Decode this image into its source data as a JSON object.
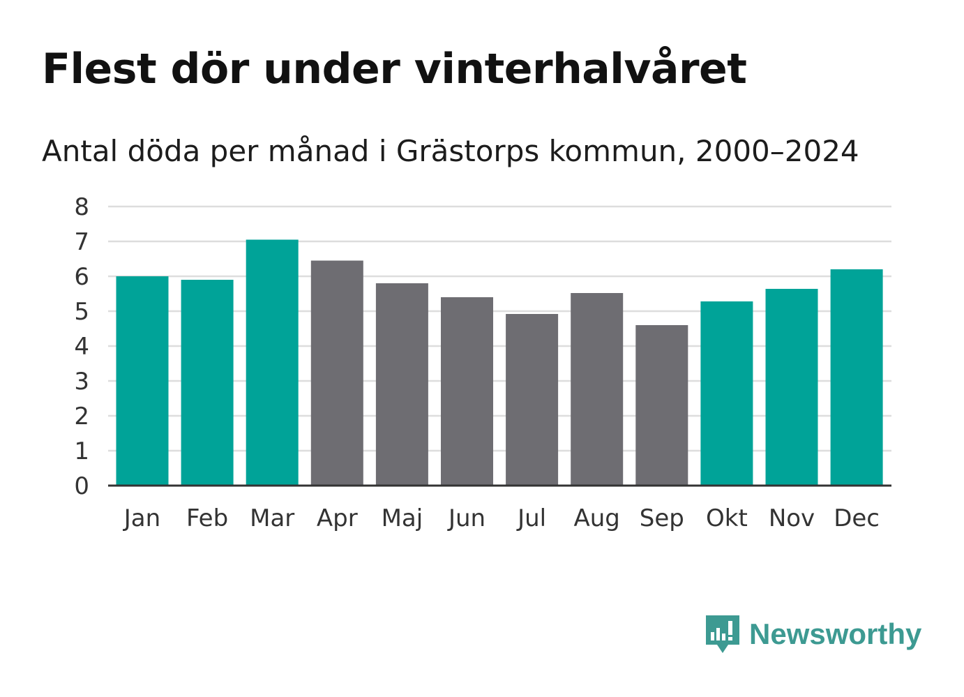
{
  "title": "Flest dör under vinterhalvåret",
  "subtitle": "Antal döda per månad i Grästorps kommun, 2000–2024",
  "brand": {
    "name": "Newsworthy",
    "icon": "newsworthy-logo-icon"
  },
  "colors": {
    "winter": "#00a398",
    "summer": "#6e6d72",
    "grid": "#dddddd",
    "axis": "#333333",
    "brand": "#3d9a92"
  },
  "chart_data": {
    "type": "bar",
    "title": "Flest dör under vinterhalvåret",
    "subtitle": "Antal döda per månad i Grästorps kommun, 2000–2024",
    "xlabel": "",
    "ylabel": "",
    "ylim": [
      0,
      8
    ],
    "yticks": [
      0,
      1,
      2,
      3,
      4,
      5,
      6,
      7,
      8
    ],
    "grid": true,
    "categories": [
      "Jan",
      "Feb",
      "Mar",
      "Apr",
      "Maj",
      "Jun",
      "Jul",
      "Aug",
      "Sep",
      "Okt",
      "Nov",
      "Dec"
    ],
    "values": [
      6.0,
      5.9,
      7.05,
      6.45,
      5.8,
      5.4,
      4.92,
      5.52,
      4.6,
      5.28,
      5.64,
      6.2
    ],
    "groups": [
      "winter",
      "winter",
      "winter",
      "summer",
      "summer",
      "summer",
      "summer",
      "summer",
      "summer",
      "winter",
      "winter",
      "winter"
    ]
  }
}
